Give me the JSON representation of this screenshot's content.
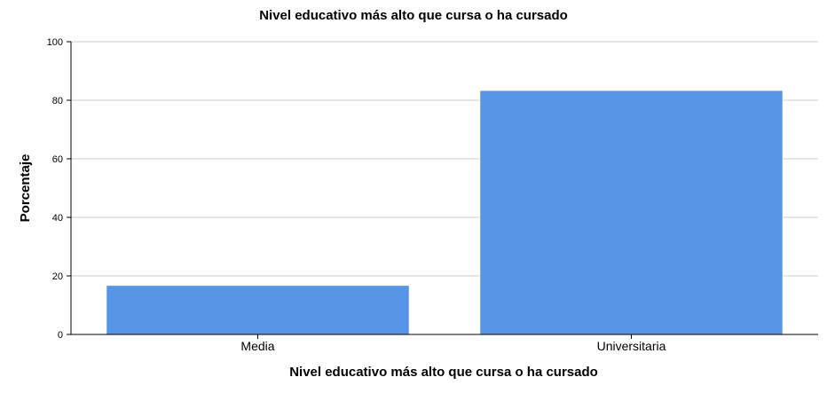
{
  "chart_data": {
    "type": "bar",
    "title": "Nivel educativo más alto que  cursa o ha cursado",
    "xlabel": "Nivel educativo más alto que  cursa o ha cursado",
    "ylabel": "Porcentaje",
    "categories": [
      "Media",
      "Universitaria"
    ],
    "values": [
      16.7,
      83.3
    ],
    "ylim": [
      0,
      100
    ],
    "yticks": [
      "0",
      "20",
      "40",
      "60",
      "80",
      "100"
    ],
    "grid": true,
    "bar_color": "#5796e6",
    "grid_color": "#cccccc"
  }
}
